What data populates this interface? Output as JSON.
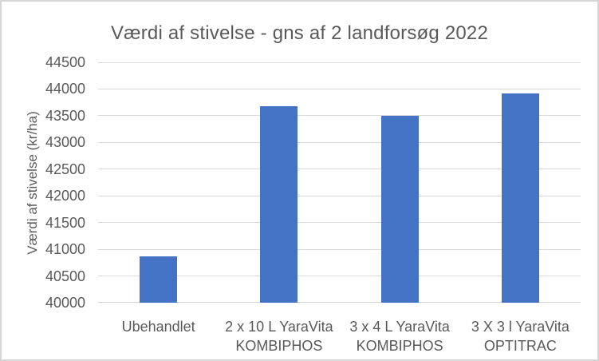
{
  "chart": {
    "title": "Værdi af stivelse - gns af 2 landforsøg 2022",
    "y_axis_title": "Værdi af stivelse (kr/ha)"
  },
  "chart_data": {
    "type": "bar",
    "title": "Værdi af stivelse - gns af 2 landforsøg 2022",
    "xlabel": "",
    "ylabel": "Værdi af stivelse (kr/ha)",
    "categories": [
      "Ubehandlet",
      "2 x 10 L YaraVita KOMBIPHOS",
      "3 x 4 L YaraVita KOMBIPHOS",
      "3 X 3 l YaraVita OPTITRAC"
    ],
    "category_label_lines": [
      [
        "Ubehandlet"
      ],
      [
        "2 x 10 L YaraVita",
        "KOMBIPHOS"
      ],
      [
        "3 x 4 L YaraVita",
        "KOMBIPHOS"
      ],
      [
        "3 X 3 l YaraVita",
        "OPTITRAC"
      ]
    ],
    "values": [
      40860,
      43680,
      43500,
      43920
    ],
    "ylim": [
      40000,
      44500
    ],
    "ytick_step": 500,
    "ytick_labels": [
      "40000",
      "40500",
      "41000",
      "41500",
      "42000",
      "42500",
      "43000",
      "43500",
      "44000",
      "44500"
    ],
    "grid": true,
    "legend": false,
    "colors": {
      "bar": "#4472c4",
      "text": "#595959",
      "gridline": "#d9d9d9",
      "border": "#d6d6d6",
      "background": "#ffffff"
    }
  }
}
